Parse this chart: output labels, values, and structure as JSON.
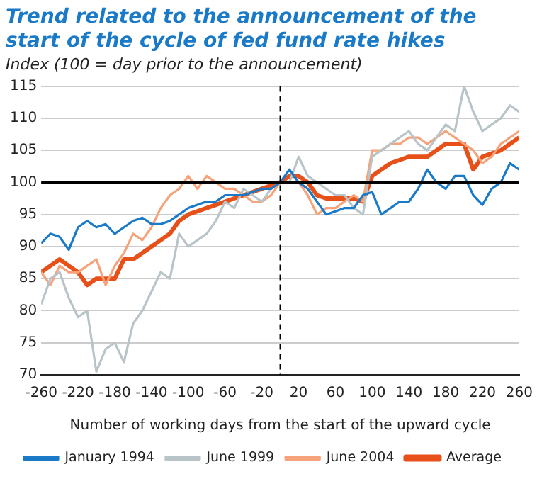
{
  "chart_data": {
    "type": "line",
    "title": "Trend related to the announcement of the start of the cycle of fed fund rate hikes",
    "subtitle": "Index (100 = day prior to the announcement)",
    "xlabel": "Number of working days from the start of the upward cycle",
    "x": [
      -260,
      -250,
      -240,
      -230,
      -220,
      -210,
      -200,
      -190,
      -180,
      -170,
      -160,
      -150,
      -140,
      -130,
      -120,
      -110,
      -100,
      -90,
      -80,
      -70,
      -60,
      -50,
      -40,
      -30,
      -20,
      -10,
      0,
      10,
      20,
      30,
      40,
      50,
      60,
      70,
      80,
      90,
      100,
      110,
      120,
      130,
      140,
      150,
      160,
      170,
      180,
      190,
      200,
      210,
      220,
      230,
      240,
      250,
      260
    ],
    "series": [
      {
        "name": "January 1994",
        "color": "#1a7ac8",
        "values": [
          90.5,
          92,
          91.5,
          89.5,
          93,
          94,
          93,
          93.5,
          92,
          93,
          94,
          94.5,
          93.5,
          93.5,
          94,
          95,
          96,
          96.5,
          97,
          97,
          98,
          98,
          98,
          98.5,
          99,
          99,
          100,
          102,
          100,
          99,
          97,
          95,
          95.5,
          96,
          96,
          98,
          98.5,
          95,
          96,
          97,
          97,
          99,
          102,
          100,
          99,
          101,
          101,
          98,
          96.5,
          99,
          100,
          103,
          102
        ]
      },
      {
        "name": "June 1999",
        "color": "#b8c4c8",
        "values": [
          81,
          85,
          86,
          82,
          79,
          80,
          70.5,
          74,
          75,
          72,
          78,
          80,
          83,
          86,
          85,
          92,
          90,
          91,
          92,
          94,
          97,
          96,
          99,
          98,
          97,
          99,
          100,
          100,
          104,
          101,
          100,
          99,
          98,
          98,
          96,
          95,
          104,
          105,
          106,
          107,
          108,
          106,
          105,
          107,
          109,
          108,
          115,
          111,
          108,
          109,
          110,
          112,
          111
        ]
      },
      {
        "name": "June 2004",
        "color": "#f6a27a",
        "values": [
          86,
          84,
          87,
          86,
          86,
          87,
          88,
          84,
          87,
          89,
          92,
          91,
          93,
          96,
          98,
          99,
          101,
          99,
          101,
          100,
          99,
          99,
          98,
          97,
          97,
          98,
          100,
          100,
          100,
          98,
          95,
          96,
          96,
          97,
          98,
          97,
          105,
          105,
          106,
          106,
          107,
          107,
          106,
          107,
          108,
          107,
          106,
          105,
          103,
          104,
          106,
          107,
          108
        ]
      },
      {
        "name": "Average",
        "color": "#e8501a",
        "values": [
          86,
          87,
          88,
          87,
          86,
          84,
          85,
          85,
          85,
          88,
          88,
          89,
          90,
          91,
          92,
          94,
          95,
          95.5,
          96,
          96.5,
          97,
          97.5,
          98,
          98.5,
          99,
          99.5,
          100,
          101,
          101,
          100,
          98,
          97.5,
          97.5,
          97.5,
          97.5,
          97,
          101,
          102,
          103,
          103.5,
          104,
          104,
          104,
          105,
          106,
          106,
          106,
          102,
          104,
          104.5,
          105,
          106,
          107
        ]
      }
    ],
    "xlim": [
      -260,
      260
    ],
    "xticks": [
      -260,
      -220,
      -180,
      -140,
      -100,
      -60,
      -20,
      20,
      60,
      100,
      140,
      180,
      220,
      260
    ],
    "ylim": [
      70,
      115
    ],
    "yticks": [
      70,
      75,
      80,
      85,
      90,
      95,
      100,
      105,
      110,
      115
    ],
    "ref_lines": [
      {
        "axis": "y",
        "value": 100,
        "color": "#000000",
        "line_style": "solid"
      },
      {
        "axis": "x",
        "value": 0,
        "color": "#000000",
        "line_style": "dashed"
      }
    ],
    "grid": "y",
    "legend": "bottom",
    "marker": "none",
    "line_style": "solid"
  }
}
